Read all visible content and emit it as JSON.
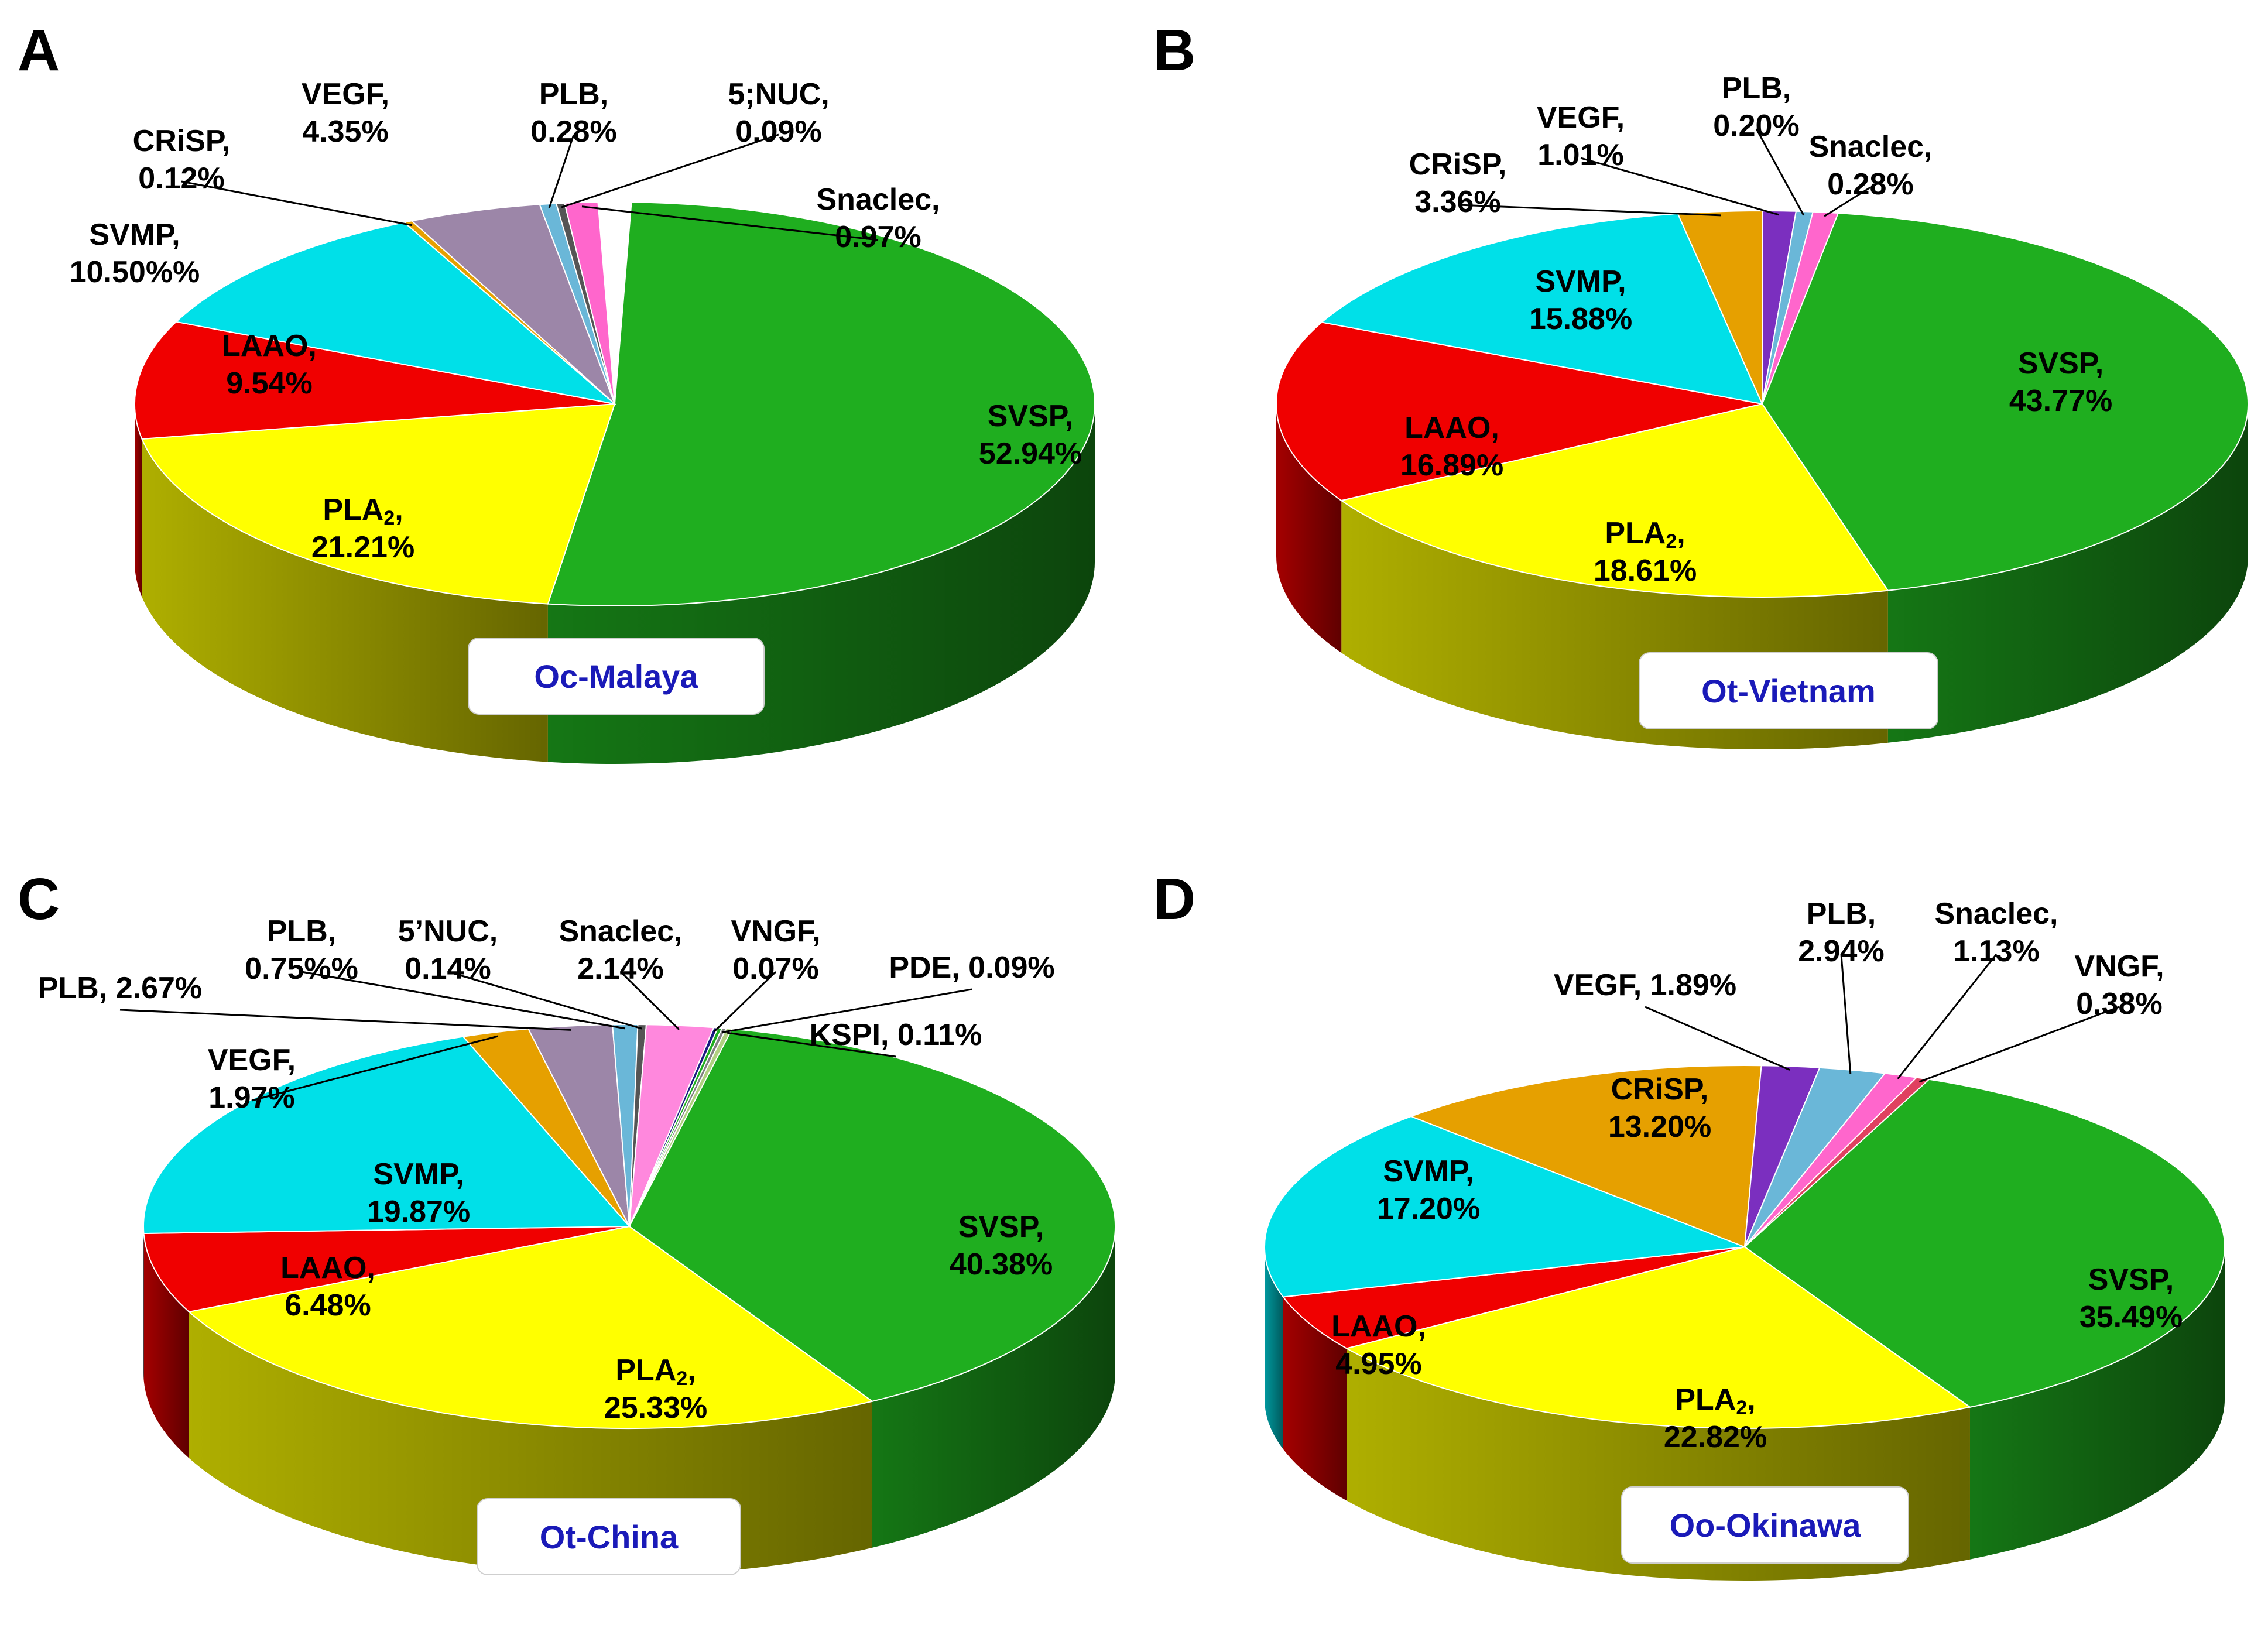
{
  "chart_data": [
    {
      "type": "pie",
      "panel": "A",
      "title": "Oc-Malaya",
      "slices": [
        {
          "name": "SVSP",
          "value": 52.94,
          "label": [
            "SVSP,",
            "52.94%"
          ],
          "color": "#1fae1f"
        },
        {
          "name": "PLA2",
          "value": 21.21,
          "label": [
            "PLA",
            "21.21%"
          ],
          "color": "#ffff00"
        },
        {
          "name": "LAAO",
          "value": 9.54,
          "label": [
            "LAAO,",
            "9.54%"
          ],
          "color": "#f00000"
        },
        {
          "name": "SVMP",
          "value": 10.5,
          "label": [
            "SVMP,",
            "10.50%%"
          ],
          "color": "#00e0e8"
        },
        {
          "name": "CRiSP",
          "value": 0.12,
          "label": [
            "CRiSP,",
            "0.12%"
          ],
          "color": "#e6a000"
        },
        {
          "name": "VEGF",
          "value": 4.35,
          "label": [
            "VEGF,",
            "4.35%"
          ],
          "color": "#9c86a8"
        },
        {
          "name": "PLB",
          "value": 0.28,
          "label": [
            "PLB,",
            "0.28%"
          ],
          "color": "#6ab7d8"
        },
        {
          "name": "5;NUC",
          "value": 0.09,
          "label": [
            "5;NUC,",
            "0.09%"
          ],
          "color": "#555555"
        },
        {
          "name": "Snaclec",
          "value": 0.97,
          "label": [
            "Snaclec,",
            "0.97%"
          ],
          "color": "#ff66cc"
        }
      ]
    },
    {
      "type": "pie",
      "panel": "B",
      "title": "Ot-Vietnam",
      "slices": [
        {
          "name": "SVSP",
          "value": 43.77,
          "label": [
            "SVSP,",
            "43.77%"
          ],
          "color": "#1fae1f"
        },
        {
          "name": "PLA2",
          "value": 18.61,
          "label": [
            "PLA",
            "18.61%"
          ],
          "color": "#ffff00"
        },
        {
          "name": "LAAO",
          "value": 16.89,
          "label": [
            "LAAO,",
            "16.89%"
          ],
          "color": "#f00000"
        },
        {
          "name": "SVMP",
          "value": 15.88,
          "label": [
            "SVMP,",
            "15.88%"
          ],
          "color": "#00e0e8"
        },
        {
          "name": "CRiSP",
          "value": 3.36,
          "label": [
            "CRiSP,",
            "3.36%"
          ],
          "color": "#e6a000"
        },
        {
          "name": "VEGF",
          "value": 1.01,
          "label": [
            "VEGF,",
            "1.01%"
          ],
          "color": "#7b2fbf"
        },
        {
          "name": "PLB",
          "value": 0.2,
          "label": [
            "PLB,",
            "0.20%"
          ],
          "color": "#6ab7d8"
        },
        {
          "name": "Snaclec",
          "value": 0.28,
          "label": [
            "Snaclec,",
            "0.28%"
          ],
          "color": "#ff66cc"
        }
      ]
    },
    {
      "type": "pie",
      "panel": "C",
      "title": "Ot-China",
      "slices": [
        {
          "name": "SVSP",
          "value": 40.38,
          "label": [
            "SVSP,",
            "40.38%"
          ],
          "color": "#1fae1f"
        },
        {
          "name": "PLA2",
          "value": 25.33,
          "label": [
            "PLA",
            "25.33%"
          ],
          "color": "#ffff00"
        },
        {
          "name": "LAAO",
          "value": 6.48,
          "label": [
            "LAAO,",
            "6.48%"
          ],
          "color": "#f00000"
        },
        {
          "name": "SVMP",
          "value": 19.87,
          "label": [
            "SVMP,",
            "19.87%"
          ],
          "color": "#00e0e8"
        },
        {
          "name": "VEGF",
          "value": 1.97,
          "label": [
            "VEGF,",
            "1.97%"
          ],
          "color": "#e6a000"
        },
        {
          "name": "PLB",
          "value": 2.67,
          "label": [
            "PLB, 2.67%"
          ],
          "color": "#9c86a8"
        },
        {
          "name": "PLB",
          "value": 0.75,
          "label": [
            "PLB,",
            "0.75%%"
          ],
          "color": "#6ab7d8"
        },
        {
          "name": "5'NUC",
          "value": 0.14,
          "label": [
            "5’NUC,",
            "0.14%"
          ],
          "color": "#555555"
        },
        {
          "name": "Snaclec",
          "value": 2.14,
          "label": [
            "Snaclec,",
            "2.14%"
          ],
          "color": "#ff88dd"
        },
        {
          "name": "VNGF",
          "value": 0.07,
          "label": [
            "VNGF,",
            "0.07%"
          ],
          "color": "#1a1a80"
        },
        {
          "name": "PDE",
          "value": 0.09,
          "label": [
            "PDE, 0.09%"
          ],
          "color": "#808080"
        },
        {
          "name": "KSPI",
          "value": 0.11,
          "label": [
            "KSPI, 0.11%"
          ],
          "color": "#b0d080"
        }
      ]
    },
    {
      "type": "pie",
      "panel": "D",
      "title": "Oo-Okinawa",
      "slices": [
        {
          "name": "SVSP",
          "value": 35.49,
          "label": [
            "SVSP,",
            "35.49%"
          ],
          "color": "#1fae1f"
        },
        {
          "name": "PLA2",
          "value": 22.82,
          "label": [
            "PLA",
            "22.82%"
          ],
          "color": "#ffff00"
        },
        {
          "name": "LAAO",
          "value": 4.95,
          "label": [
            "LAAO,",
            "4.95%"
          ],
          "color": "#f00000"
        },
        {
          "name": "SVMP",
          "value": 17.2,
          "label": [
            "SVMP,",
            "17.20%"
          ],
          "color": "#00e0e8"
        },
        {
          "name": "CRiSP",
          "value": 13.2,
          "label": [
            "CRiSP,",
            "13.20%"
          ],
          "color": "#e6a000"
        },
        {
          "name": "VEGF",
          "value": 1.89,
          "label": [
            "VEGF, 1.89%"
          ],
          "color": "#7b2fbf"
        },
        {
          "name": "PLB",
          "value": 2.94,
          "label": [
            "PLB,",
            "2.94%"
          ],
          "color": "#6ab7d8"
        },
        {
          "name": "Snaclec",
          "value": 1.13,
          "label": [
            "Snaclec,",
            "1.13%"
          ],
          "color": "#ff66cc"
        },
        {
          "name": "VNGF",
          "value": 0.38,
          "label": [
            "VNGF,",
            "0.38%"
          ],
          "color": "#e04060"
        }
      ]
    }
  ],
  "pla_subscript": "2"
}
